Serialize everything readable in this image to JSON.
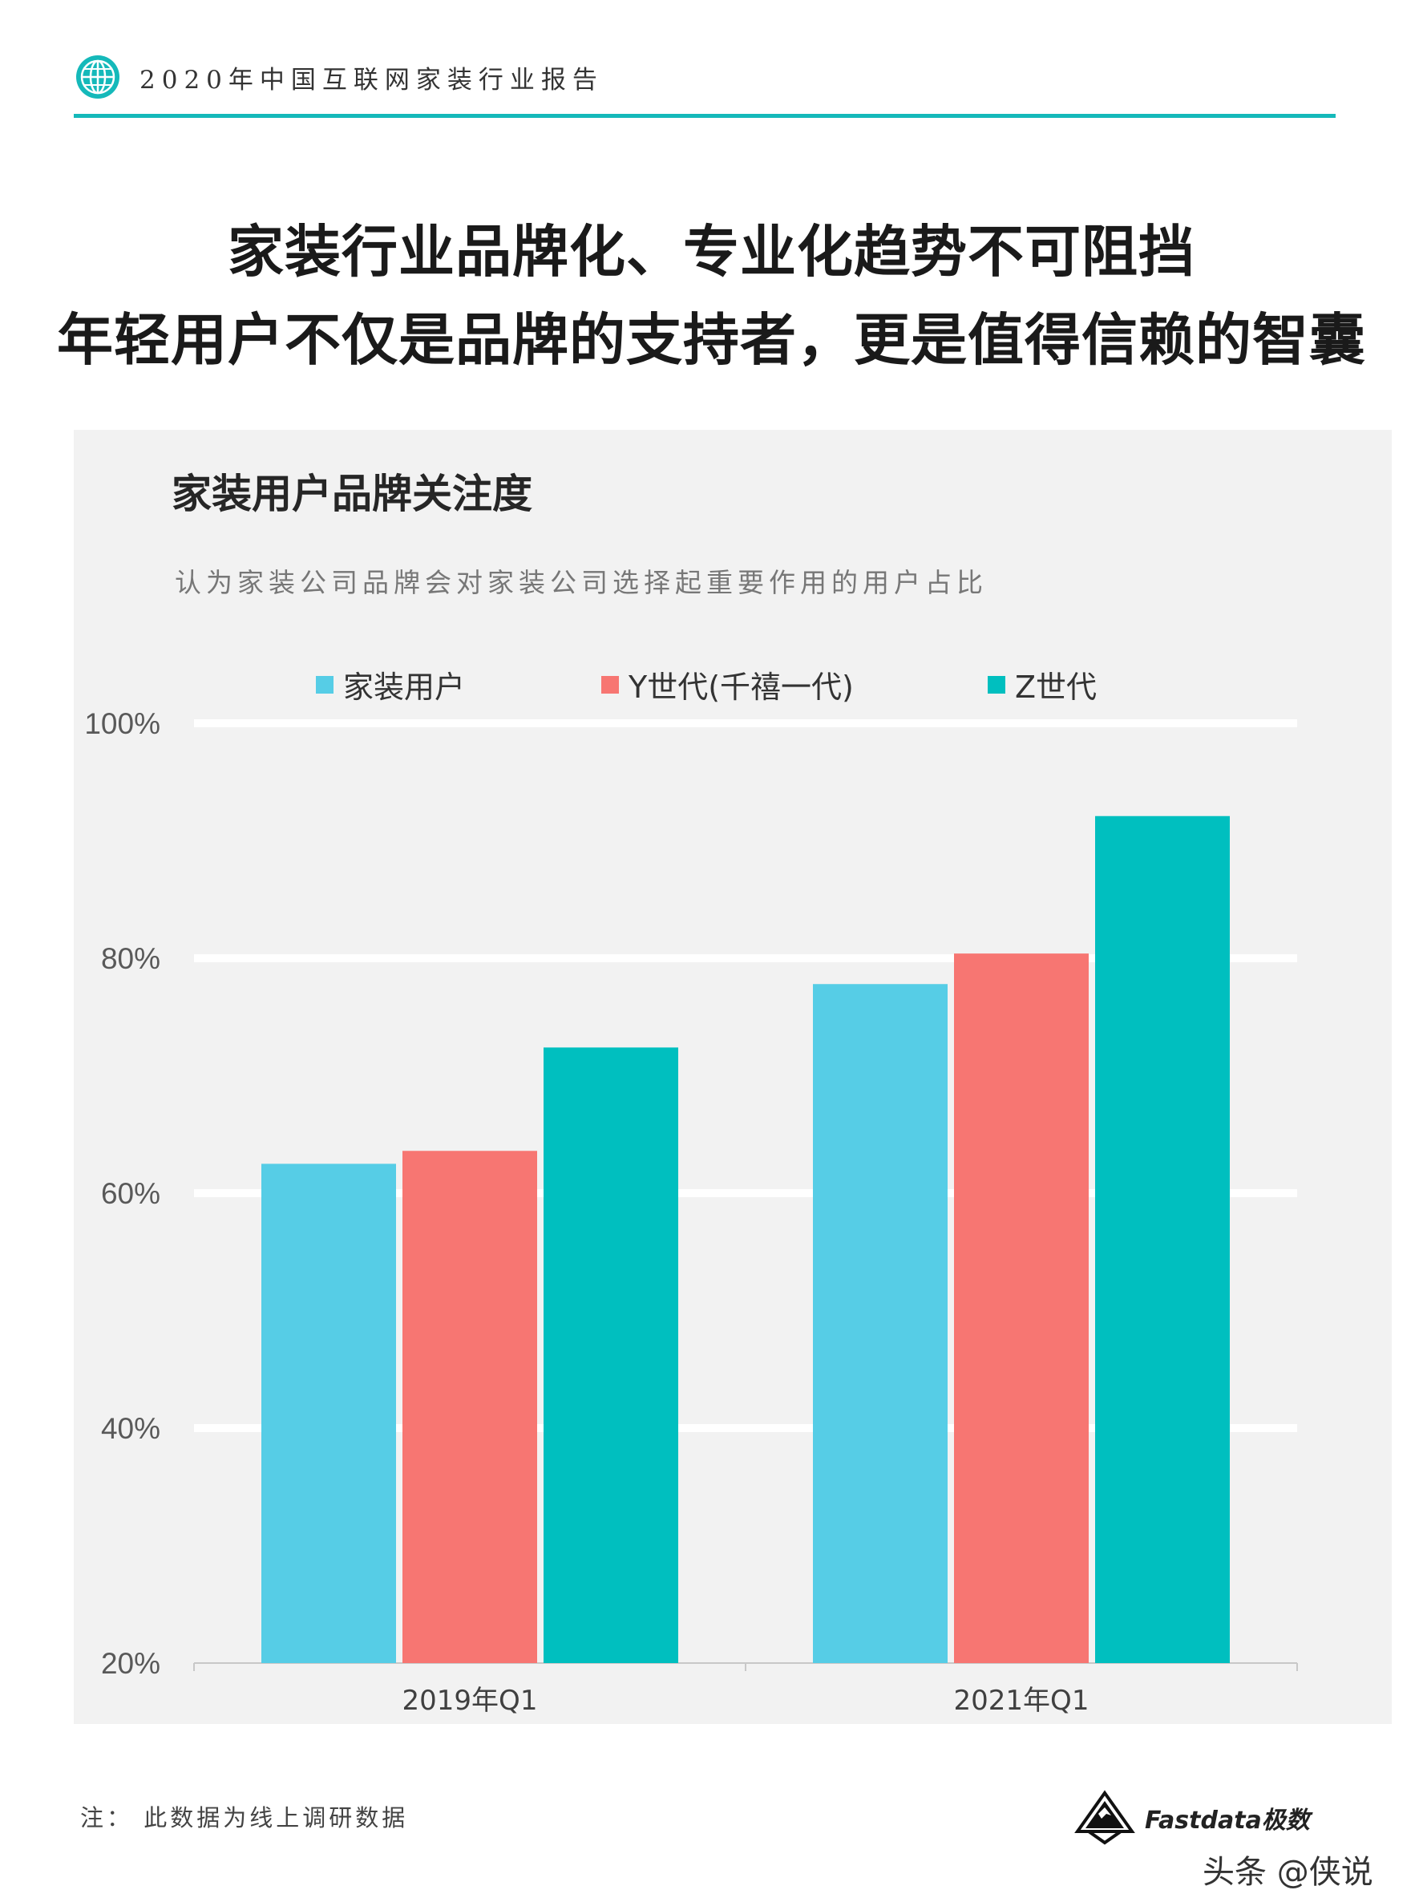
{
  "header": {
    "title": "2020年中国互联网家装行业报告",
    "icon": "globe-icon",
    "accent_color": "#15b9ba"
  },
  "headline": {
    "line1": "家装行业品牌化、专业化趋势不可阻挡",
    "line2": "年轻用户不仅是品牌的支持者，更是值得信赖的智囊"
  },
  "chart_data": {
    "type": "bar",
    "title": "家装用户品牌关注度",
    "subtitle": "认为家装公司品牌会对家装公司选择起重要作用的用户占比",
    "categories": [
      "2019年Q1",
      "2021年Q1"
    ],
    "series": [
      {
        "name": "家装用户",
        "color": "#56cde6",
        "values": [
          62.5,
          77.8
        ]
      },
      {
        "name": "Y世代(千禧一代)",
        "color": "#f77672",
        "values": [
          63.6,
          80.4
        ]
      },
      {
        "name": "Z世代",
        "color": "#00bfbf",
        "values": [
          72.4,
          92.1
        ]
      }
    ],
    "ylim": [
      20,
      100
    ],
    "yticks": [
      "20%",
      "40%",
      "60%",
      "80%",
      "100%"
    ],
    "grid": true,
    "legend_position": "top"
  },
  "footer": {
    "note": "注：  此数据为线上调研数据",
    "brand": "Fastdata极数",
    "watermark": "头条 @侠说"
  }
}
